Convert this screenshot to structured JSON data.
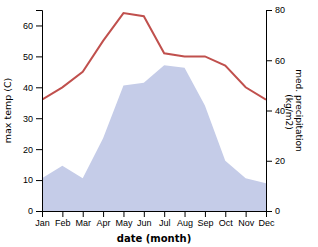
{
  "chart_data": {
    "type": "line",
    "xlabel": "date (month)",
    "ylabel": "max temp (C)",
    "y2label": "med. precipitation\n (kg/m2)",
    "categories": [
      "Jan",
      "Feb",
      "Mar",
      "Apr",
      "May",
      "Jun",
      "Jul",
      "Aug",
      "Sep",
      "Oct",
      "Nov",
      "Dec"
    ],
    "series": [
      {
        "type": "line",
        "color": "#c0504d",
        "values": [
          36,
          40,
          45,
          55,
          64,
          63,
          51,
          50,
          50,
          47,
          40,
          36
        ]
      },
      {
        "type": "area",
        "axis": "y2",
        "color": "#c5cce8",
        "values": [
          13,
          18,
          13,
          29,
          50,
          51,
          58,
          57,
          42,
          20,
          13,
          11
        ]
      }
    ],
    "ylim": [
      0,
      65
    ],
    "yticks": [
      0,
      10,
      20,
      30,
      40,
      50,
      60
    ],
    "y2lim": [
      0,
      80
    ],
    "y2ticks": [
      0,
      20,
      40,
      60,
      80
    ],
    "grid": false
  }
}
